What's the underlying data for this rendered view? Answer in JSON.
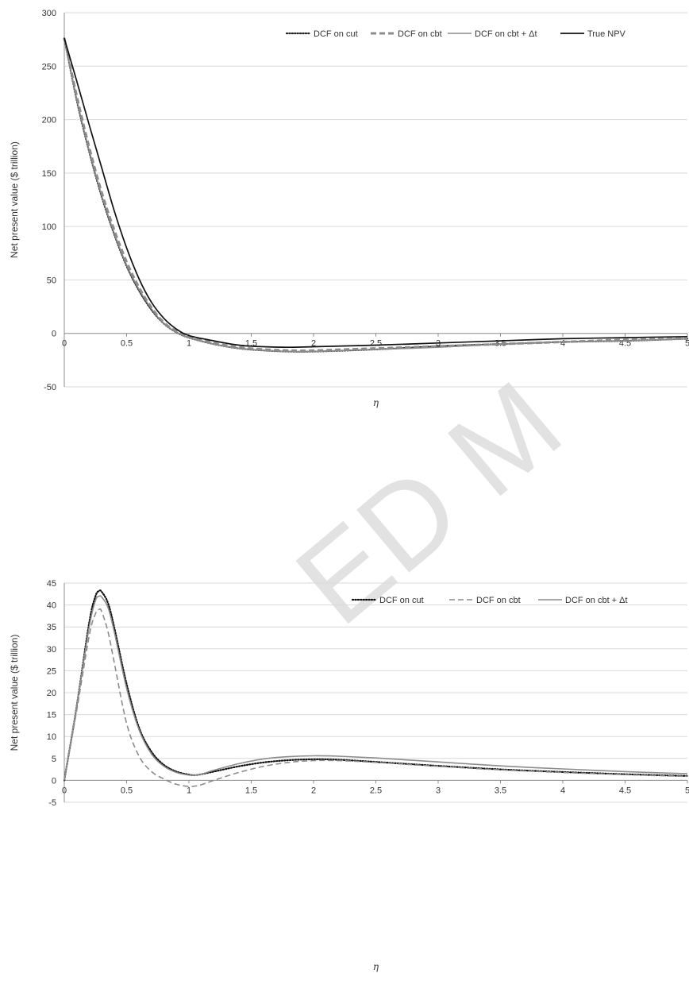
{
  "watermark": "ED M",
  "chart_data": [
    {
      "type": "line",
      "xlabel": "η",
      "ylabel": "Net present value ($ trillion)",
      "xlim": [
        0,
        5
      ],
      "ylim": [
        -50,
        300
      ],
      "xticks": [
        "0",
        "0.5",
        "1",
        "1.5",
        "2",
        "2.5",
        "3",
        "3.5",
        "4",
        "4.5",
        "5"
      ],
      "yticks": [
        "-50",
        "0",
        "50",
        "100",
        "150",
        "200",
        "250",
        "300"
      ],
      "grid": "horizontal",
      "legend": "top-right",
      "x": [
        0,
        0.1,
        0.2,
        0.3,
        0.4,
        0.5,
        0.6,
        0.7,
        0.8,
        0.9,
        1.0,
        1.2,
        1.4,
        1.6,
        1.8,
        2.0,
        2.5,
        3.0,
        3.5,
        4.0,
        4.5,
        5.0
      ],
      "series": [
        {
          "name": "DCF on cut",
          "style": "dotted",
          "color": "#222222",
          "values": [
            276,
            218,
            170,
            128,
            93,
            63,
            40,
            22,
            9,
            1,
            -4,
            -10,
            -14,
            -16,
            -17,
            -17,
            -15,
            -12,
            -10,
            -8,
            -7,
            -5
          ]
        },
        {
          "name": "DCF on cbt",
          "style": "dashed",
          "color": "#8c8c8c",
          "values": [
            276,
            222,
            174,
            132,
            97,
            67,
            43,
            24,
            10,
            2,
            -3,
            -9,
            -13,
            -15,
            -16,
            -16,
            -14,
            -12,
            -10,
            -8,
            -6,
            -5
          ]
        },
        {
          "name": "DCF on cbt + Δt",
          "style": "solid",
          "color": "#8c8c8c",
          "values": [
            276,
            219,
            171,
            129,
            94,
            64,
            41,
            23,
            9,
            1,
            -4,
            -10,
            -14,
            -16,
            -17,
            -17,
            -15,
            -13,
            -10,
            -8,
            -7,
            -5
          ]
        },
        {
          "name": "True NPV",
          "style": "solid",
          "color": "#111111",
          "values": [
            276,
            236,
            195,
            155,
            115,
            80,
            51,
            29,
            14,
            4,
            -2,
            -7,
            -11,
            -12.5,
            -13,
            -12.5,
            -11,
            -9,
            -7,
            -5,
            -4,
            -3
          ]
        }
      ]
    },
    {
      "type": "line",
      "xlabel": "η",
      "ylabel": "Net present value ($ trillion)",
      "xlim": [
        0,
        5
      ],
      "ylim": [
        -5,
        45
      ],
      "xticks": [
        "0",
        "0.5",
        "1",
        "1.5",
        "2",
        "2.5",
        "3",
        "3.5",
        "4",
        "4.5",
        "5"
      ],
      "yticks": [
        "-5",
        "0",
        "5",
        "10",
        "15",
        "20",
        "25",
        "30",
        "35",
        "40",
        "45"
      ],
      "grid": "horizontal",
      "legend": "top-right",
      "x": [
        0,
        0.1,
        0.2,
        0.25,
        0.28,
        0.3,
        0.35,
        0.4,
        0.5,
        0.6,
        0.7,
        0.8,
        0.9,
        1.0,
        1.05,
        1.1,
        1.2,
        1.4,
        1.6,
        1.8,
        2.0,
        2.2,
        2.5,
        3.0,
        3.5,
        4.0,
        4.5,
        5.0
      ],
      "series": [
        {
          "name": "DCF on cut",
          "style": "dotted",
          "color": "#111111",
          "values": [
            0,
            17,
            36,
            42,
            43.2,
            43,
            40.5,
            35,
            22,
            12,
            6.5,
            3.5,
            2,
            1.3,
            1.2,
            1.4,
            2,
            3.2,
            4.1,
            4.6,
            4.8,
            4.7,
            4.2,
            3.3,
            2.5,
            1.9,
            1.4,
            1.0
          ]
        },
        {
          "name": "DCF on cbt",
          "style": "dashed",
          "color": "#8c8c8c",
          "values": [
            0,
            16,
            33,
            38,
            39,
            38.5,
            34,
            27,
            13,
            5.5,
            2,
            0.3,
            -0.9,
            -1.4,
            -1.3,
            -1,
            0,
            1.8,
            3.2,
            4.1,
            4.5,
            4.5,
            4.1,
            3.2,
            2.4,
            1.8,
            1.3,
            0.9
          ]
        },
        {
          "name": "DCF on cbt + Δt",
          "style": "solid",
          "color": "#8c8c8c",
          "values": [
            0,
            17,
            35,
            41,
            42,
            41.8,
            39.5,
            34,
            21,
            11.5,
            6,
            3.2,
            1.8,
            1.2,
            1.2,
            1.4,
            2.3,
            3.8,
            4.9,
            5.4,
            5.6,
            5.5,
            5.1,
            4.2,
            3.3,
            2.6,
            2.0,
            1.5
          ]
        }
      ]
    }
  ]
}
